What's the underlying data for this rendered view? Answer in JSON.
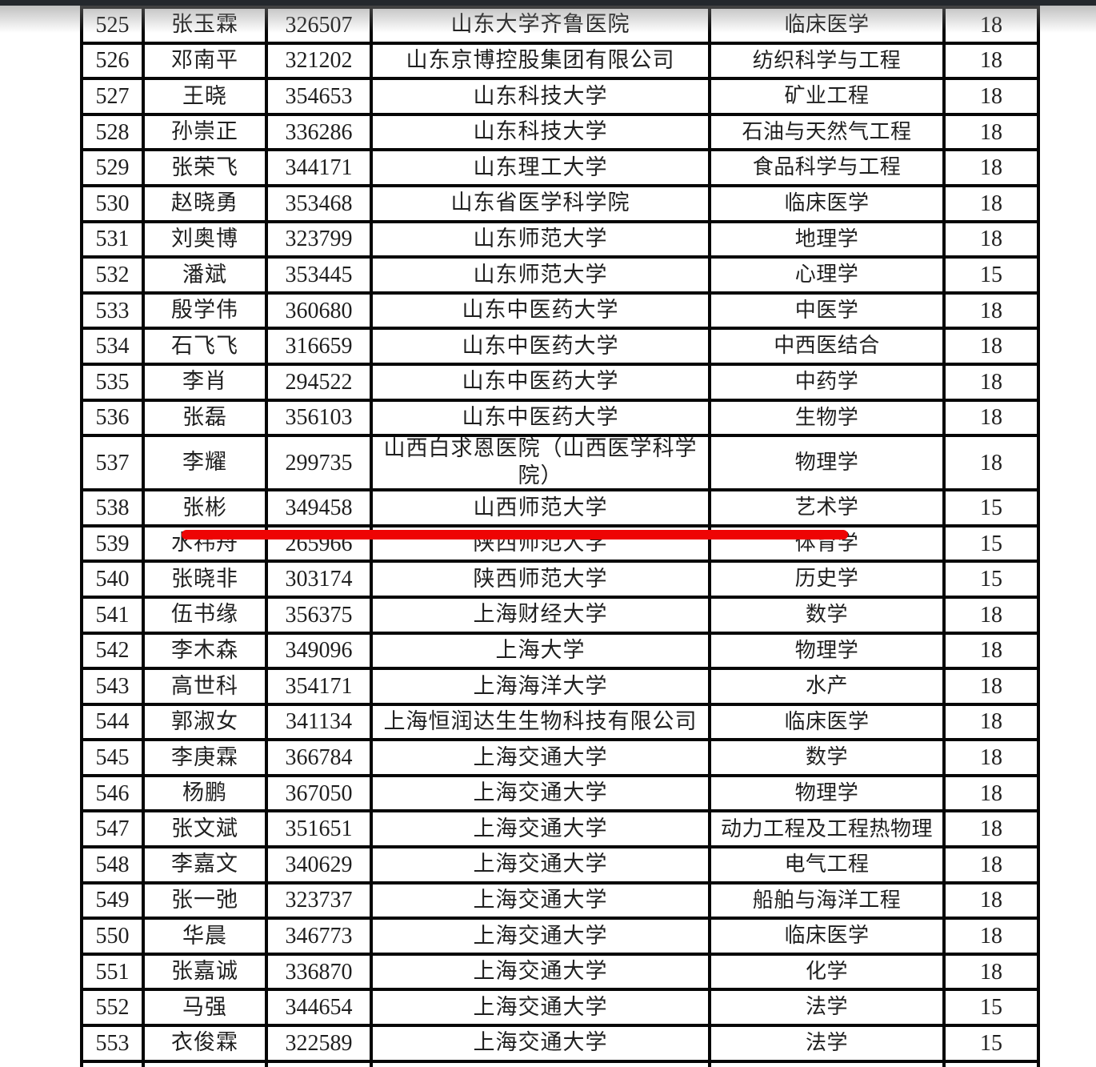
{
  "page": {
    "top_bar_color": "#24282d",
    "background_color": "#ffffff"
  },
  "annotation": {
    "type": "red-underline",
    "after_row": "538",
    "color": "#ee0404"
  },
  "table": {
    "border_color": "#060606",
    "rows": [
      {
        "no": "525",
        "name": "张玉霖",
        "id": "326507",
        "org": "山东大学齐鲁医院",
        "discipline": "临床医学",
        "quota": "18"
      },
      {
        "no": "526",
        "name": "邓南平",
        "id": "321202",
        "org": "山东京博控股集团有限公司",
        "discipline": "纺织科学与工程",
        "quota": "18"
      },
      {
        "no": "527",
        "name": "王晓",
        "id": "354653",
        "org": "山东科技大学",
        "discipline": "矿业工程",
        "quota": "18"
      },
      {
        "no": "528",
        "name": "孙崇正",
        "id": "336286",
        "org": "山东科技大学",
        "discipline": "石油与天然气工程",
        "quota": "18"
      },
      {
        "no": "529",
        "name": "张荣飞",
        "id": "344171",
        "org": "山东理工大学",
        "discipline": "食品科学与工程",
        "quota": "18"
      },
      {
        "no": "530",
        "name": "赵晓勇",
        "id": "353468",
        "org": "山东省医学科学院",
        "discipline": "临床医学",
        "quota": "18"
      },
      {
        "no": "531",
        "name": "刘奥博",
        "id": "323799",
        "org": "山东师范大学",
        "discipline": "地理学",
        "quota": "18"
      },
      {
        "no": "532",
        "name": "潘斌",
        "id": "353445",
        "org": "山东师范大学",
        "discipline": "心理学",
        "quota": "15"
      },
      {
        "no": "533",
        "name": "殷学伟",
        "id": "360680",
        "org": "山东中医药大学",
        "discipline": "中医学",
        "quota": "18"
      },
      {
        "no": "534",
        "name": "石飞飞",
        "id": "316659",
        "org": "山东中医药大学",
        "discipline": "中西医结合",
        "quota": "18"
      },
      {
        "no": "535",
        "name": "李肖",
        "id": "294522",
        "org": "山东中医药大学",
        "discipline": "中药学",
        "quota": "18"
      },
      {
        "no": "536",
        "name": "张磊",
        "id": "356103",
        "org": "山东中医药大学",
        "discipline": "生物学",
        "quota": "18"
      },
      {
        "no": "537",
        "name": "李耀",
        "id": "299735",
        "org": "山西白求恩医院（山西医学科学院）",
        "discipline": "物理学",
        "quota": "18"
      },
      {
        "no": "538",
        "name": "张彬",
        "id": "349458",
        "org": "山西师范大学",
        "discipline": "艺术学",
        "quota": "15"
      },
      {
        "no": "539",
        "name": "水祎舟",
        "id": "265966",
        "org": "陕西师范大学",
        "discipline": "体育学",
        "quota": "15"
      },
      {
        "no": "540",
        "name": "张晓非",
        "id": "303174",
        "org": "陕西师范大学",
        "discipline": "历史学",
        "quota": "15"
      },
      {
        "no": "541",
        "name": "伍书缘",
        "id": "356375",
        "org": "上海财经大学",
        "discipline": "数学",
        "quota": "18"
      },
      {
        "no": "542",
        "name": "李木森",
        "id": "349096",
        "org": "上海大学",
        "discipline": "物理学",
        "quota": "18"
      },
      {
        "no": "543",
        "name": "高世科",
        "id": "354171",
        "org": "上海海洋大学",
        "discipline": "水产",
        "quota": "18"
      },
      {
        "no": "544",
        "name": "郭淑女",
        "id": "341134",
        "org": "上海恒润达生生物科技有限公司",
        "discipline": "临床医学",
        "quota": "18"
      },
      {
        "no": "545",
        "name": "李庚霖",
        "id": "366784",
        "org": "上海交通大学",
        "discipline": "数学",
        "quota": "18"
      },
      {
        "no": "546",
        "name": "杨鹏",
        "id": "367050",
        "org": "上海交通大学",
        "discipline": "物理学",
        "quota": "18"
      },
      {
        "no": "547",
        "name": "张文斌",
        "id": "351651",
        "org": "上海交通大学",
        "discipline": "动力工程及工程热物理",
        "quota": "18"
      },
      {
        "no": "548",
        "name": "李嘉文",
        "id": "340629",
        "org": "上海交通大学",
        "discipline": "电气工程",
        "quota": "18"
      },
      {
        "no": "549",
        "name": "张一弛",
        "id": "323737",
        "org": "上海交通大学",
        "discipline": "船舶与海洋工程",
        "quota": "18"
      },
      {
        "no": "550",
        "name": "华晨",
        "id": "346773",
        "org": "上海交通大学",
        "discipline": "临床医学",
        "quota": "18"
      },
      {
        "no": "551",
        "name": "张嘉诚",
        "id": "336870",
        "org": "上海交通大学",
        "discipline": "化学",
        "quota": "18"
      },
      {
        "no": "552",
        "name": "马强",
        "id": "344654",
        "org": "上海交通大学",
        "discipline": "法学",
        "quota": "15"
      },
      {
        "no": "553",
        "name": "衣俊霖",
        "id": "322589",
        "org": "上海交通大学",
        "discipline": "法学",
        "quota": "15"
      }
    ]
  }
}
